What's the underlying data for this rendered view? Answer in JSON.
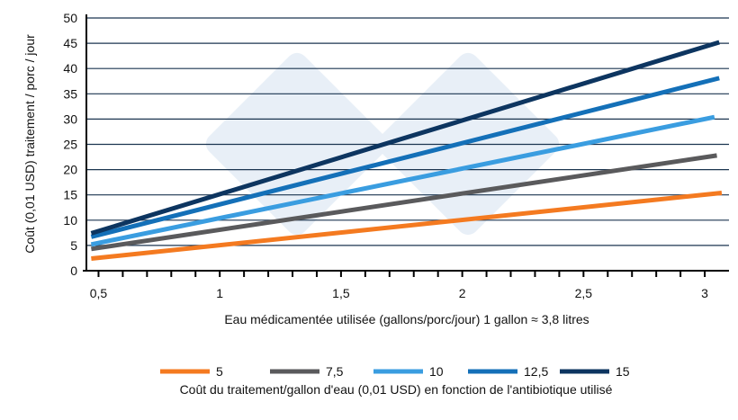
{
  "chart_data": {
    "type": "line",
    "xlabel": "Eau médicamentée utilisée (gallons/porc/jour) 1 gallon ≈ 3,8 litres",
    "ylabel": "Coût (0,01 USD) traitement / porc / jour",
    "legend_title": "Coût du traitement/gallon d'eau (0,01 USD) en fonction de l'antibiotique utilisé",
    "legend_position": "bottom",
    "grid": "horizontal",
    "xlim": [
      0.45,
      3.1
    ],
    "ylim": [
      0,
      50
    ],
    "xticks": [
      {
        "v": 0.5,
        "label": "0,5"
      },
      {
        "v": 1,
        "label": "1"
      },
      {
        "v": 1.5,
        "label": "1,5"
      },
      {
        "v": 2,
        "label": "2"
      },
      {
        "v": 2.5,
        "label": "2,5"
      },
      {
        "v": 3,
        "label": "3"
      }
    ],
    "yticks": [
      0,
      5,
      10,
      15,
      20,
      25,
      30,
      35,
      40,
      45,
      50
    ],
    "series": [
      {
        "name": "5",
        "color": "#f47a20",
        "x": [
          0.47,
          3.07
        ],
        "y": [
          2.4,
          15.4
        ]
      },
      {
        "name": "7,5",
        "color": "#5a5a5c",
        "x": [
          0.47,
          3.05
        ],
        "y": [
          4.3,
          22.8
        ]
      },
      {
        "name": "10",
        "color": "#3a9de0",
        "x": [
          0.47,
          3.04
        ],
        "y": [
          5.2,
          30.4
        ]
      },
      {
        "name": "12,5",
        "color": "#1470b8",
        "x": [
          0.47,
          3.06
        ],
        "y": [
          6.7,
          38.1
        ]
      },
      {
        "name": "15",
        "color": "#0d3560",
        "x": [
          0.47,
          3.06
        ],
        "y": [
          7.4,
          45.2
        ]
      }
    ]
  }
}
